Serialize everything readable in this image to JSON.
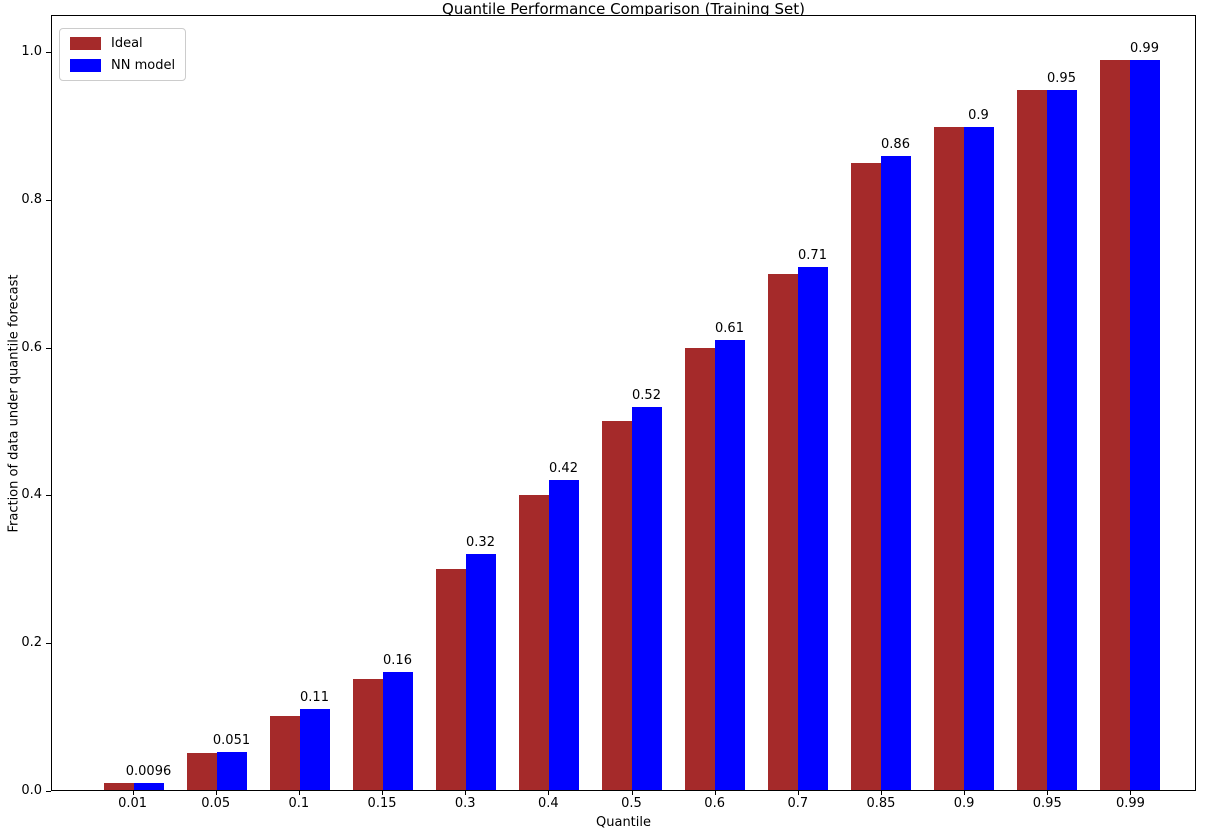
{
  "chart_data": {
    "type": "bar",
    "title": "Quantile Performance Comparison (Training Set)",
    "xlabel": "Quantile",
    "ylabel": "Fraction of data under quantile forecast",
    "categories": [
      "0.01",
      "0.05",
      "0.1",
      "0.15",
      "0.3",
      "0.4",
      "0.5",
      "0.6",
      "0.7",
      "0.85",
      "0.9",
      "0.95",
      "0.99"
    ],
    "series": [
      {
        "name": "Ideal",
        "color": "#A52A2A",
        "values": [
          0.01,
          0.05,
          0.1,
          0.15,
          0.3,
          0.4,
          0.5,
          0.6,
          0.7,
          0.85,
          0.9,
          0.95,
          0.99
        ]
      },
      {
        "name": "NN model",
        "color": "#0000FF",
        "values": [
          0.0096,
          0.051,
          0.11,
          0.16,
          0.32,
          0.42,
          0.52,
          0.61,
          0.71,
          0.86,
          0.9,
          0.95,
          0.99
        ]
      }
    ],
    "bar_labels": [
      "0.0096",
      "0.051",
      "0.11",
      "0.16",
      "0.32",
      "0.42",
      "0.52",
      "0.61",
      "0.71",
      "0.86",
      "0.9",
      "0.95",
      "0.99"
    ],
    "yticks": [
      "0.0",
      "0.2",
      "0.4",
      "0.6",
      "0.8",
      "1.0"
    ],
    "ylim": [
      0,
      1.05
    ],
    "legend_position": "upper left",
    "grid": false
  }
}
